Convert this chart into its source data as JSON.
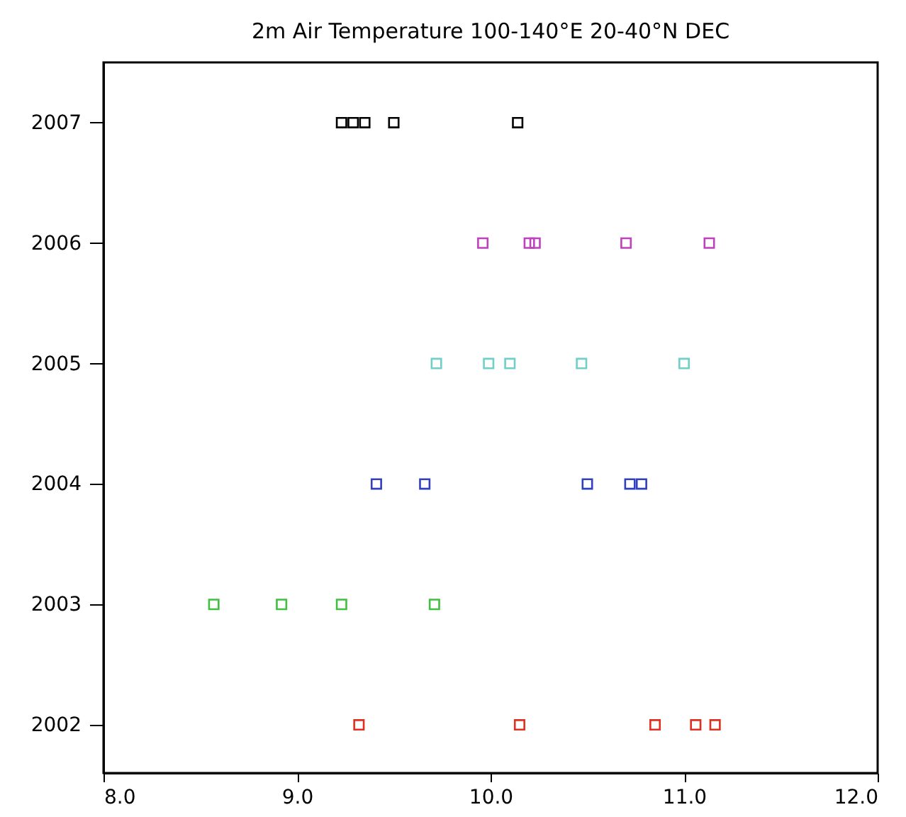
{
  "chart_data": {
    "type": "scatter",
    "title": "2m Air Temperature   100-140°E   20-40°N   DEC",
    "series": [
      {
        "color": "#e03020",
        "x": [
          9.32,
          10.15,
          10.85,
          11.06,
          11.16
        ],
        "values": [
          2002,
          2002,
          2002,
          2002,
          2002
        ]
      },
      {
        "color": "#40c040",
        "x": [
          8.57,
          8.92,
          9.23,
          9.71
        ],
        "values": [
          2003,
          2003,
          2003,
          2003
        ]
      },
      {
        "color": "#3040c0",
        "x": [
          9.41,
          9.66,
          10.5,
          10.72,
          10.78
        ],
        "values": [
          2004,
          2004,
          2004,
          2004,
          2004
        ]
      },
      {
        "color": "#70d0c8",
        "x": [
          9.72,
          9.99,
          10.1,
          10.47,
          11.0
        ],
        "values": [
          2005,
          2005,
          2005,
          2005,
          2005
        ]
      },
      {
        "color": "#c040c0",
        "x": [
          9.96,
          10.2,
          10.23,
          10.7,
          11.13
        ],
        "values": [
          2006,
          2006,
          2006,
          2006,
          2006
        ]
      },
      {
        "color": "#000000",
        "x": [
          9.23,
          9.29,
          9.35,
          9.5,
          10.14
        ],
        "values": [
          2007,
          2007,
          2007,
          2007,
          2007
        ]
      }
    ],
    "xlim": [
      8,
      12
    ],
    "xticks": [
      {
        "value": 8,
        "label": "8.0"
      },
      {
        "value": 9,
        "label": "9.0"
      },
      {
        "value": 10,
        "label": "10.0"
      },
      {
        "value": 11,
        "label": "11.0"
      },
      {
        "value": 12,
        "label": "12.0"
      }
    ],
    "ylim": [
      2001.6,
      2007.5
    ],
    "yticks": [
      2002,
      2003,
      2004,
      2005,
      2006,
      2007
    ],
    "grid": false,
    "legend": false,
    "marker": "square"
  }
}
